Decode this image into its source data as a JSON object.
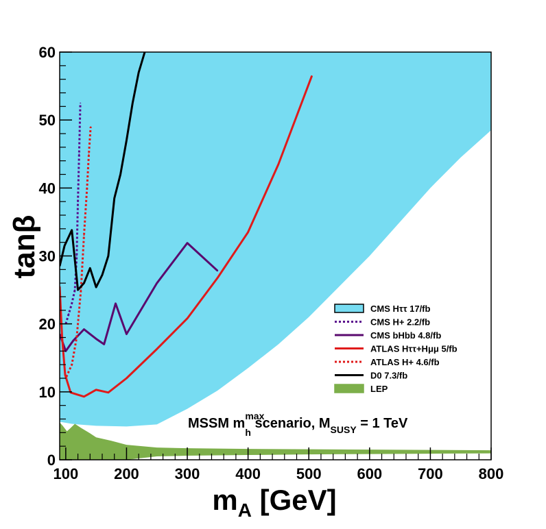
{
  "chart_data": {
    "type": "line",
    "xlabel_main": "m",
    "xlabel_sub": "A",
    "xlabel_tail": " [GeV]",
    "ylabel": "tanβ",
    "xlim": [
      90,
      800
    ],
    "ylim": [
      0,
      60
    ],
    "x_ticks": [
      100,
      200,
      300,
      400,
      500,
      600,
      700,
      800
    ],
    "y_ticks": [
      0,
      10,
      20,
      30,
      40,
      50,
      60
    ],
    "x_minor_step": 20,
    "y_minor_step": 2,
    "annotation": {
      "part1": "MSSM m",
      "sup": "max",
      "sub1": "h",
      "part2": " scenario, M",
      "sub2": "SUSY",
      "part3": " = 1 TeV"
    },
    "legend_position": "right-center",
    "legend": [
      {
        "label": "CMS Hττ 17/fb",
        "kind": "fill",
        "color": "#77dcf2",
        "border": "#000000"
      },
      {
        "label": "CMS H+ 2.2/fb",
        "kind": "dotted",
        "color": "#5a0a8c"
      },
      {
        "label": "CMS bHbb 4.8/fb",
        "kind": "solid",
        "color": "#5a0a6e"
      },
      {
        "label": "ATLAS Hττ+Hμμ 5/fb",
        "kind": "solid",
        "color": "#e01a1a"
      },
      {
        "label": "ATLAS H+ 4.6/fb",
        "kind": "dotted",
        "color": "#e01a1a"
      },
      {
        "label": "D0 7.3/fb",
        "kind": "solid",
        "color": "#000000"
      },
      {
        "label": "LEP",
        "kind": "fill",
        "color": "#7daf4a",
        "border": "#7daf4a"
      }
    ],
    "series": [
      {
        "name": "CMS Hττ 17/fb",
        "kind": "fill",
        "color": "#77dcf2",
        "boundary": [
          [
            90,
            5.6
          ],
          [
            110,
            5.3
          ],
          [
            120,
            5.2
          ],
          [
            150,
            5.0
          ],
          [
            200,
            4.9
          ],
          [
            250,
            5.2
          ],
          [
            300,
            7.5
          ],
          [
            350,
            10.2
          ],
          [
            400,
            13.5
          ],
          [
            450,
            17.0
          ],
          [
            500,
            21.0
          ],
          [
            550,
            25.5
          ],
          [
            600,
            30.0
          ],
          [
            650,
            35.0
          ],
          [
            700,
            40.0
          ],
          [
            750,
            44.5
          ],
          [
            800,
            48.5
          ]
        ]
      },
      {
        "name": "LEP",
        "kind": "fill",
        "color": "#7daf4a",
        "boundary": [
          [
            90,
            5.5
          ],
          [
            95,
            5.0
          ],
          [
            102,
            4.2
          ],
          [
            107,
            4.6
          ],
          [
            115,
            5.3
          ],
          [
            125,
            4.7
          ],
          [
            140,
            3.9
          ],
          [
            150,
            3.3
          ],
          [
            175,
            2.8
          ],
          [
            200,
            2.2
          ],
          [
            250,
            1.8
          ],
          [
            300,
            1.7
          ],
          [
            400,
            1.6
          ],
          [
            500,
            1.55
          ],
          [
            600,
            1.5
          ],
          [
            700,
            1.45
          ],
          [
            800,
            1.4
          ]
        ],
        "lower": [
          [
            90,
            0
          ],
          [
            200,
            0
          ],
          [
            250,
            0.5
          ],
          [
            300,
            0.6
          ],
          [
            400,
            0.7
          ],
          [
            500,
            0.8
          ],
          [
            600,
            0.85
          ],
          [
            700,
            0.9
          ],
          [
            800,
            0.95
          ]
        ]
      },
      {
        "name": "CMS H+ 2.2/fb",
        "kind": "dotted",
        "color": "#5a0a8c",
        "points": [
          [
            100,
            20
          ],
          [
            105,
            21.5
          ],
          [
            110,
            23
          ],
          [
            115,
            25
          ],
          [
            118,
            30
          ],
          [
            120,
            38
          ],
          [
            122,
            45
          ],
          [
            124,
            52.5
          ]
        ]
      },
      {
        "name": "CMS bHbb 4.8/fb",
        "kind": "solid",
        "color": "#5a0a6e",
        "points": [
          [
            90,
            18.5
          ],
          [
            100,
            16
          ],
          [
            112,
            17.5
          ],
          [
            130,
            19.2
          ],
          [
            150,
            17.8
          ],
          [
            163,
            17
          ],
          [
            182,
            23
          ],
          [
            200,
            18.5
          ],
          [
            250,
            26
          ],
          [
            300,
            31.9
          ],
          [
            350,
            27.8
          ]
        ]
      },
      {
        "name": "ATLAS Hττ+Hμμ 5/fb",
        "kind": "solid",
        "color": "#e01a1a",
        "points": [
          [
            90,
            25.5
          ],
          [
            94,
            18
          ],
          [
            99,
            12.5
          ],
          [
            108,
            9.9
          ],
          [
            130,
            9.3
          ],
          [
            150,
            10.3
          ],
          [
            170,
            9.9
          ],
          [
            200,
            12.0
          ],
          [
            250,
            16.3
          ],
          [
            300,
            20.8
          ],
          [
            350,
            26.8
          ],
          [
            400,
            33.5
          ],
          [
            450,
            43.5
          ],
          [
            505,
            56.5
          ]
        ]
      },
      {
        "name": "ATLAS H+ 4.6/fb",
        "kind": "dotted",
        "color": "#e01a1a",
        "points": [
          [
            101,
            12.2
          ],
          [
            110,
            14
          ],
          [
            118,
            18
          ],
          [
            125,
            25
          ],
          [
            130,
            33
          ],
          [
            135,
            40
          ],
          [
            138,
            45
          ],
          [
            141,
            49
          ]
        ]
      },
      {
        "name": "D0 7.3/fb",
        "kind": "solid",
        "color": "#000000",
        "points": [
          [
            90,
            28.5
          ],
          [
            98,
            31.5
          ],
          [
            110,
            33.8
          ],
          [
            120,
            25
          ],
          [
            130,
            26
          ],
          [
            140,
            28.2
          ],
          [
            150,
            25.4
          ],
          [
            160,
            27.2
          ],
          [
            170,
            30
          ],
          [
            180,
            38.5
          ],
          [
            190,
            42
          ],
          [
            200,
            47
          ],
          [
            210,
            52.5
          ],
          [
            220,
            57
          ],
          [
            230,
            60
          ]
        ]
      }
    ]
  }
}
